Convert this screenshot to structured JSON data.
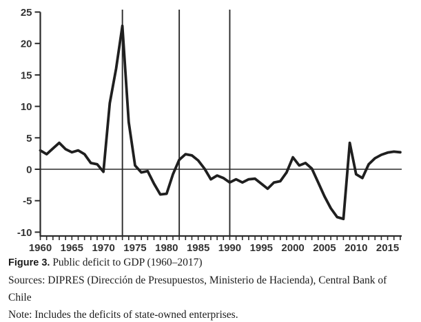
{
  "figure": {
    "caption_label": "Figure 3.",
    "caption_title": " Public deficit to GDP (1960–2017)",
    "sources_line1": "Sources: DIPRES (Dirección de Presupuestos, Ministerio de Hacienda), Central Bank of",
    "sources_line2": "Chile",
    "note": "Note: Includes the deficits of state-owned enterprises."
  },
  "chart_data": {
    "type": "line",
    "title": "Public deficit to GDP (1960–2017)",
    "xlabel": "",
    "ylabel": "",
    "legend_position": "none",
    "grid": false,
    "xlim": [
      1960,
      2017
    ],
    "ylim": [
      -10,
      25
    ],
    "yticks": [
      -10,
      -5,
      0,
      5,
      10,
      15,
      20,
      25
    ],
    "xticks": [
      1960,
      1965,
      1970,
      1975,
      1980,
      1985,
      1990,
      1995,
      2000,
      2005,
      2010,
      2015
    ],
    "minor_xtick_every": 1,
    "vlines": [
      1973,
      1982,
      1990
    ],
    "zero_line": true,
    "line_color": "#1f1f1f",
    "axis_color": "#2a2a2a",
    "x": [
      1960,
      1961,
      1962,
      1963,
      1964,
      1965,
      1966,
      1967,
      1968,
      1969,
      1970,
      1971,
      1972,
      1973,
      1974,
      1975,
      1976,
      1977,
      1978,
      1979,
      1980,
      1981,
      1982,
      1983,
      1984,
      1985,
      1986,
      1987,
      1988,
      1989,
      1990,
      1991,
      1992,
      1993,
      1994,
      1995,
      1996,
      1997,
      1998,
      1999,
      2000,
      2001,
      2002,
      2003,
      2004,
      2005,
      2006,
      2007,
      2008,
      2009,
      2010,
      2011,
      2012,
      2013,
      2014,
      2015,
      2016,
      2017
    ],
    "series": [
      {
        "name": "Public deficit to GDP (%)",
        "values": [
          3.0,
          2.4,
          3.3,
          4.2,
          3.2,
          2.7,
          3.0,
          2.4,
          1.0,
          0.8,
          -0.4,
          10.5,
          16.0,
          22.8,
          7.5,
          0.6,
          -0.5,
          -0.3,
          -2.3,
          -4.0,
          -3.9,
          -0.8,
          1.5,
          2.4,
          2.2,
          1.4,
          0.1,
          -1.6,
          -1.0,
          -1.4,
          -2.1,
          -1.6,
          -2.1,
          -1.6,
          -1.5,
          -2.3,
          -3.1,
          -2.1,
          -1.9,
          -0.5,
          1.9,
          0.6,
          1.0,
          0.1,
          -2.1,
          -4.3,
          -6.2,
          -7.6,
          -7.9,
          4.2,
          -0.8,
          -1.4,
          0.8,
          1.75,
          2.3,
          2.65,
          2.8,
          2.7
        ]
      }
    ]
  }
}
